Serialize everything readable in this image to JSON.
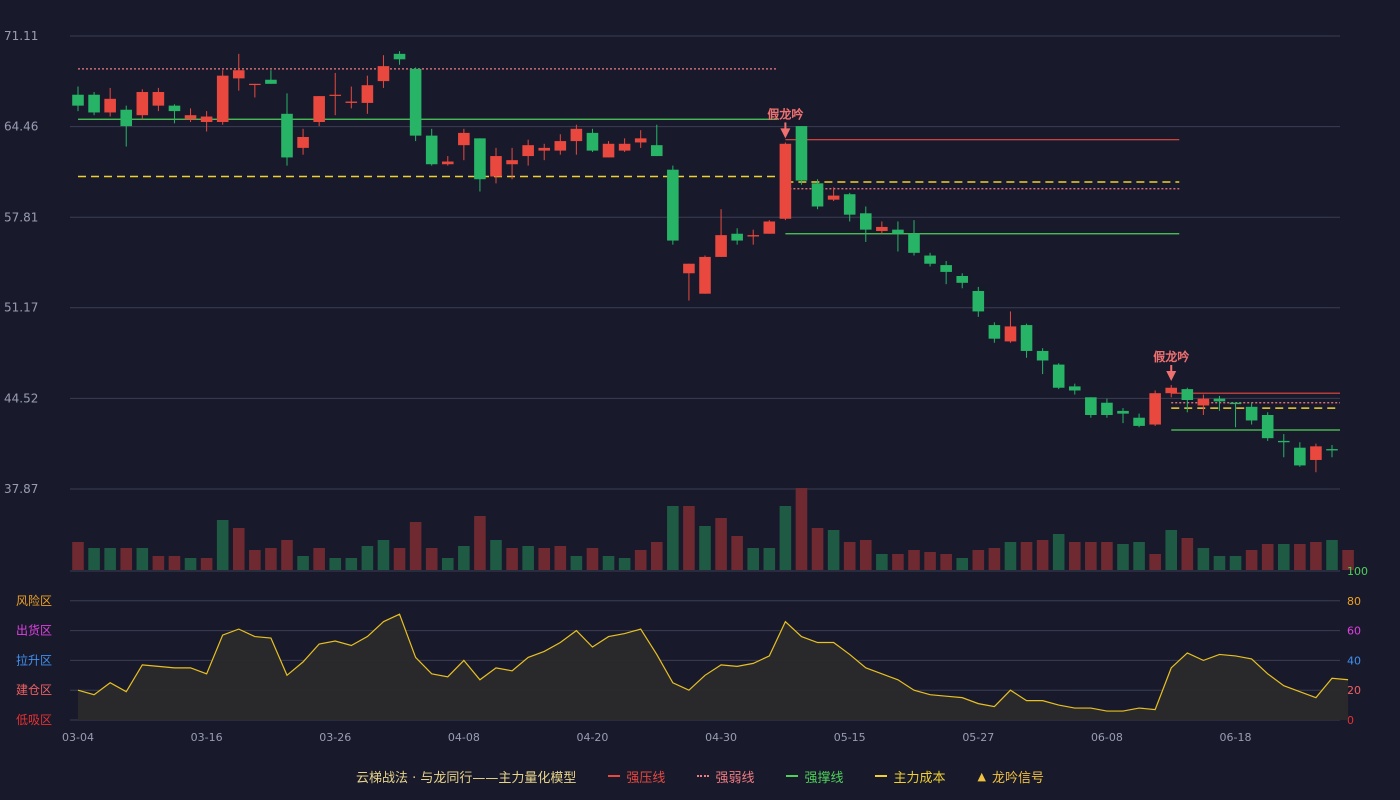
{
  "colors": {
    "background": "#181a2c",
    "grid": "#3a3c52",
    "axis_text": "#9a9cb0",
    "up": "#e8483e",
    "down": "#27b466",
    "vol_up": "#6e2a30",
    "vol_down": "#1f5a44",
    "resistance": "#e8483e",
    "weak": "#f07a80",
    "support": "#4ed05a",
    "cost": "#f0d030",
    "signal": "#f07070",
    "osc_line": "#e8c020",
    "osc_fill": "#2a2a2c"
  },
  "chart_data": [
    {
      "type": "candlestick",
      "title": "",
      "x_tick_labels": [
        "03-04",
        "03-16",
        "03-26",
        "04-08",
        "04-20",
        "04-30",
        "05-15",
        "05-27",
        "06-08",
        "06-18"
      ],
      "x_tick_index": [
        0,
        8,
        16,
        24,
        32,
        40,
        48,
        56,
        64,
        72
      ],
      "y_tick_labels": [
        "71.11",
        "64.46",
        "57.81",
        "51.17",
        "44.52",
        "37.87"
      ],
      "ylim": [
        37.87,
        71.11
      ],
      "ohlc": [
        [
          66.8,
          66.0,
          67.4,
          65.6
        ],
        [
          66.8,
          65.5,
          67.0,
          65.3
        ],
        [
          65.5,
          66.5,
          67.3,
          65.2
        ],
        [
          65.7,
          64.5,
          66.0,
          63.0
        ],
        [
          65.3,
          67.0,
          67.2,
          65.0
        ],
        [
          66.0,
          67.0,
          67.3,
          65.6
        ],
        [
          66.0,
          65.6,
          66.1,
          64.7
        ],
        [
          65.0,
          65.3,
          65.8,
          64.8
        ],
        [
          64.8,
          65.2,
          65.6,
          64.1
        ],
        [
          64.8,
          68.2,
          68.6,
          64.6
        ],
        [
          68.0,
          68.6,
          69.8,
          67.1
        ],
        [
          67.6,
          67.6,
          67.6,
          66.6
        ],
        [
          67.9,
          67.6,
          68.6,
          67.6
        ],
        [
          65.4,
          62.2,
          66.9,
          61.6
        ],
        [
          62.9,
          63.7,
          64.3,
          62.4
        ],
        [
          64.8,
          66.7,
          66.7,
          64.5
        ],
        [
          66.8,
          66.8,
          68.4,
          65.3
        ],
        [
          66.2,
          66.3,
          67.4,
          65.8
        ],
        [
          66.2,
          67.5,
          68.2,
          65.4
        ],
        [
          67.8,
          68.9,
          69.7,
          67.3
        ],
        [
          69.8,
          69.4,
          70.0,
          69.0
        ],
        [
          68.7,
          63.8,
          68.8,
          63.4
        ],
        [
          63.8,
          61.7,
          64.3,
          61.6
        ],
        [
          61.7,
          61.9,
          62.3,
          61.6
        ],
        [
          63.1,
          64.0,
          64.3,
          62.0
        ],
        [
          63.6,
          60.6,
          63.6,
          59.7
        ],
        [
          60.8,
          62.3,
          62.9,
          60.3
        ],
        [
          61.7,
          62.0,
          62.9,
          60.6
        ],
        [
          62.3,
          63.1,
          63.5,
          61.6
        ],
        [
          62.7,
          62.9,
          63.2,
          62.0
        ],
        [
          62.7,
          63.4,
          63.9,
          62.4
        ],
        [
          63.4,
          64.3,
          64.6,
          62.4
        ],
        [
          64.0,
          62.7,
          64.3,
          62.6
        ],
        [
          62.2,
          63.2,
          63.4,
          62.2
        ],
        [
          62.7,
          63.2,
          63.6,
          62.6
        ],
        [
          63.3,
          63.6,
          64.2,
          62.9
        ],
        [
          63.1,
          62.3,
          64.6,
          62.3
        ],
        [
          61.3,
          56.1,
          61.6,
          55.8
        ],
        [
          53.7,
          54.4,
          52.4,
          51.7
        ],
        [
          52.2,
          54.9,
          55.0,
          52.4
        ],
        [
          54.9,
          56.5,
          58.4,
          54.9
        ],
        [
          56.6,
          56.1,
          57.0,
          55.8
        ],
        [
          56.4,
          56.5,
          56.9,
          55.8
        ],
        [
          56.6,
          57.5,
          57.6,
          56.6
        ],
        [
          57.7,
          63.2,
          63.3,
          57.6
        ],
        [
          64.5,
          60.5,
          64.5,
          60.2
        ],
        [
          60.3,
          58.6,
          60.6,
          58.4
        ],
        [
          59.1,
          59.4,
          60.0,
          59.0
        ],
        [
          59.5,
          58.0,
          59.6,
          57.5
        ],
        [
          58.1,
          56.9,
          58.6,
          56.0
        ],
        [
          56.8,
          57.1,
          57.5,
          56.6
        ],
        [
          56.9,
          56.6,
          57.5,
          55.3
        ],
        [
          56.6,
          55.2,
          57.6,
          55.0
        ],
        [
          55.0,
          54.4,
          55.2,
          54.2
        ],
        [
          54.3,
          53.8,
          54.6,
          52.9
        ],
        [
          53.5,
          53.0,
          53.7,
          52.6
        ],
        [
          52.4,
          50.9,
          52.7,
          50.5
        ],
        [
          49.9,
          48.9,
          50.1,
          48.6
        ],
        [
          48.7,
          49.8,
          50.9,
          48.6
        ],
        [
          49.9,
          48.0,
          50.0,
          47.5
        ],
        [
          48.0,
          47.3,
          48.2,
          46.3
        ],
        [
          47.0,
          45.3,
          47.1,
          45.2
        ],
        [
          45.4,
          45.1,
          45.6,
          44.8
        ],
        [
          44.6,
          43.3,
          44.6,
          43.1
        ],
        [
          44.2,
          43.3,
          44.5,
          43.1
        ],
        [
          43.6,
          43.4,
          43.8,
          42.7
        ],
        [
          43.1,
          42.5,
          43.4,
          42.4
        ],
        [
          42.6,
          44.9,
          45.1,
          42.5
        ],
        [
          44.9,
          45.3,
          45.5,
          44.6
        ],
        [
          45.2,
          44.4,
          45.3,
          43.5
        ],
        [
          44.0,
          44.5,
          44.8,
          43.3
        ],
        [
          44.5,
          44.3,
          44.7,
          43.6
        ],
        [
          44.2,
          44.1,
          44.2,
          42.4
        ],
        [
          43.9,
          42.9,
          44.2,
          42.6
        ],
        [
          43.3,
          41.6,
          43.5,
          41.4
        ],
        [
          41.4,
          41.3,
          41.9,
          40.2
        ],
        [
          40.9,
          39.6,
          41.3,
          39.5
        ],
        [
          40.0,
          41.0,
          41.2,
          39.1
        ],
        [
          40.8,
          40.7,
          41.1,
          40.2
        ]
      ],
      "volume_up": [
        1,
        0,
        0,
        1,
        0,
        1,
        1,
        0,
        1,
        0,
        1,
        1,
        1,
        1,
        0,
        1,
        0,
        0,
        0,
        0,
        1,
        1,
        1,
        0,
        0,
        1,
        0,
        1,
        0,
        1,
        1,
        0,
        1,
        0,
        0,
        1,
        1,
        0,
        1,
        0,
        1,
        1,
        0,
        0,
        0,
        1,
        1,
        0,
        1,
        1,
        0,
        1,
        1,
        1,
        1,
        0,
        1,
        1,
        0,
        1,
        1,
        0,
        1,
        1,
        1,
        0,
        0,
        1,
        0,
        1,
        0,
        0,
        0,
        1,
        1,
        0,
        1,
        1,
        0,
        1
      ],
      "volume": [
        14,
        11,
        11,
        11,
        11,
        7,
        7,
        6,
        6,
        25,
        21,
        10,
        11,
        15,
        7,
        11,
        6,
        6,
        12,
        15,
        11,
        24,
        11,
        6,
        12,
        27,
        15,
        11,
        12,
        11,
        12,
        7,
        11,
        7,
        6,
        10,
        14,
        32,
        32,
        22,
        26,
        17,
        11,
        11,
        32,
        41,
        21,
        20,
        14,
        15,
        8,
        8,
        10,
        9,
        8,
        6,
        10,
        11,
        14,
        14,
        15,
        18,
        14,
        14,
        14,
        13,
        14,
        8,
        20,
        16,
        11,
        7,
        7,
        10,
        13,
        13,
        13,
        14,
        15,
        10
      ],
      "annotations": [
        {
          "text": "假龙吟",
          "index": 44
        },
        {
          "text": "假龙吟",
          "index": 68
        }
      ],
      "lines": [
        {
          "name": "强压线",
          "style": "dotted",
          "color": "weak",
          "y": 68.7,
          "from": 0,
          "to": 43
        },
        {
          "name": "强撑线",
          "style": "solid",
          "color": "support",
          "y": 65.0,
          "from": 0,
          "to": 43
        },
        {
          "name": "主力成本",
          "style": "dashed",
          "color": "cost",
          "y": 60.8,
          "from": 0,
          "to": 43
        },
        {
          "name": "强压线",
          "style": "solid",
          "color": "resistance",
          "y": 63.5,
          "from": 44,
          "to": 68
        },
        {
          "name": "主力成本",
          "style": "dashed",
          "color": "cost",
          "y": 60.4,
          "from": 44,
          "to": 68
        },
        {
          "name": "强弱线",
          "style": "dotted",
          "color": "weak",
          "y": 59.9,
          "from": 44,
          "to": 68
        },
        {
          "name": "强撑线",
          "style": "solid",
          "color": "support",
          "y": 56.6,
          "from": 44,
          "to": 68
        },
        {
          "name": "强压线",
          "style": "solid",
          "color": "resistance",
          "y": 44.9,
          "from": 68,
          "to": 80
        },
        {
          "name": "强弱线",
          "style": "dotted",
          "color": "weak",
          "y": 44.2,
          "from": 68,
          "to": 80
        },
        {
          "name": "主力成本",
          "style": "dashed",
          "color": "cost",
          "y": 43.8,
          "from": 68,
          "to": 80
        },
        {
          "name": "强撑线",
          "style": "solid",
          "color": "support",
          "y": 42.2,
          "from": 68,
          "to": 80
        }
      ]
    },
    {
      "type": "area",
      "ylim": [
        0,
        100
      ],
      "right_tick_labels": [
        "100",
        "80",
        "60",
        "40",
        "20",
        "0"
      ],
      "right_tick_values": [
        100,
        80,
        60,
        40,
        20,
        0
      ],
      "right_tick_colors": [
        "#4ed05a",
        "#f0a020",
        "#e040e0",
        "#4090f0",
        "#f06060",
        "#e83030"
      ],
      "zone_labels": [
        {
          "text": "风险区",
          "value": 80,
          "color": "#f0a020"
        },
        {
          "text": "出货区",
          "value": 60,
          "color": "#e040e0"
        },
        {
          "text": "拉升区",
          "value": 40,
          "color": "#4090f0"
        },
        {
          "text": "建仓区",
          "value": 20,
          "color": "#f06060"
        },
        {
          "text": "低吸区",
          "value": 0,
          "color": "#e83030"
        }
      ],
      "values": [
        20,
        17,
        25,
        19,
        37,
        36,
        35,
        35,
        31,
        57,
        61,
        56,
        55,
        30,
        39,
        51,
        53,
        50,
        56,
        66,
        71,
        42,
        31,
        29,
        40,
        27,
        35,
        33,
        42,
        46,
        52,
        60,
        49,
        56,
        58,
        61,
        44,
        25,
        20,
        30,
        37,
        36,
        38,
        43,
        66,
        56,
        52,
        52,
        44,
        35,
        31,
        27,
        20,
        17,
        16,
        15,
        11,
        9,
        20,
        13,
        13,
        10,
        8,
        8,
        6,
        6,
        8,
        7,
        35,
        45,
        40,
        44,
        43,
        41,
        31,
        23,
        19,
        15,
        28,
        27
      ]
    }
  ],
  "legend": {
    "title": "云梯战法 · 与龙同行——主力量化模型",
    "items": [
      {
        "label": "强压线",
        "color": "#e8483e",
        "style": "solid"
      },
      {
        "label": "强弱线",
        "color": "#f07a80",
        "style": "dotted"
      },
      {
        "label": "强撑线",
        "color": "#4ed05a",
        "style": "solid"
      },
      {
        "label": "主力成本",
        "color": "#f0d030",
        "style": "dashed"
      },
      {
        "label": "龙吟信号",
        "color": "#f0c040",
        "style": "triangle"
      }
    ]
  }
}
